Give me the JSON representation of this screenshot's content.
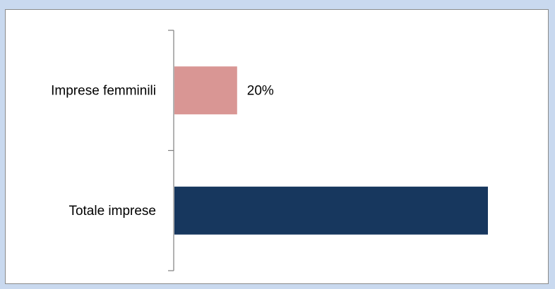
{
  "chart_data": {
    "type": "bar",
    "orientation": "horizontal",
    "categories": [
      "Imprese femminili",
      "Totale imprese"
    ],
    "values": [
      20,
      100
    ],
    "data_labels": [
      "20%",
      ""
    ],
    "xlim": [
      0,
      100
    ],
    "grid": false,
    "legend": "none",
    "colors": [
      "#d99694",
      "#17375e"
    ],
    "title": "",
    "xlabel": "",
    "ylabel": ""
  },
  "colors": {
    "page_background": "#c9d9ef",
    "axis": "#7f7f7f"
  }
}
